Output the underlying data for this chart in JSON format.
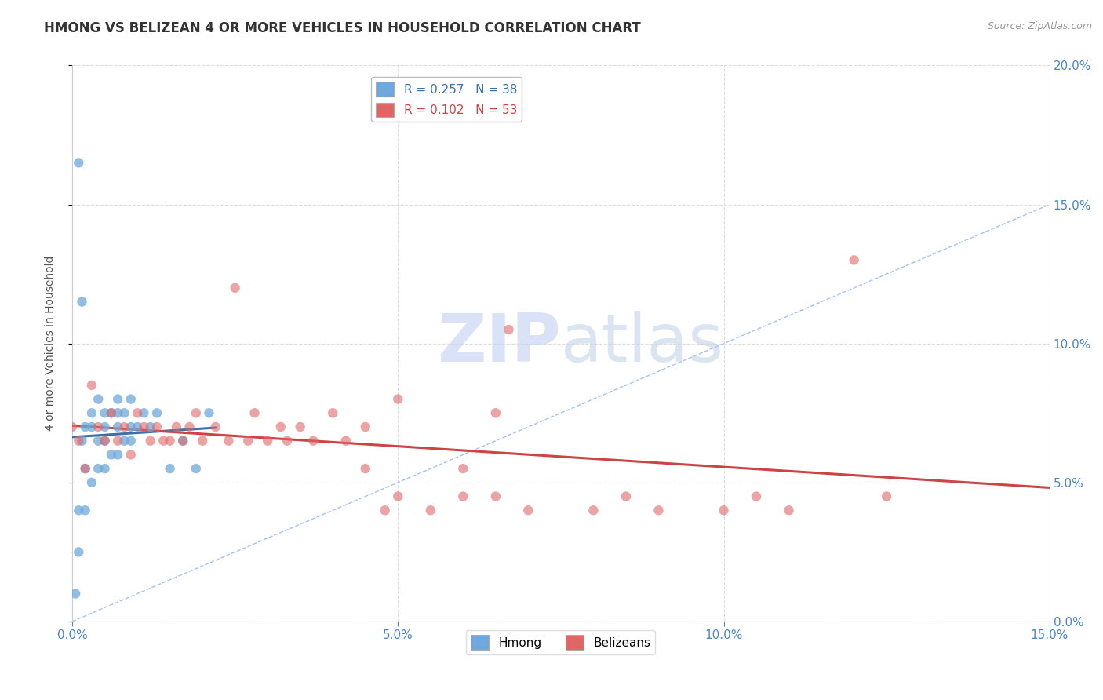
{
  "title": "HMONG VS BELIZEAN 4 OR MORE VEHICLES IN HOUSEHOLD CORRELATION CHART",
  "source_text": "Source: ZipAtlas.com",
  "ylabel": "4 or more Vehicles in Household",
  "xlim": [
    0.0,
    0.15
  ],
  "ylim": [
    0.0,
    0.2
  ],
  "xticks": [
    0.0,
    0.05,
    0.1,
    0.15
  ],
  "yticks": [
    0.0,
    0.05,
    0.1,
    0.15,
    0.2
  ],
  "xtick_labels": [
    "0.0%",
    "5.0%",
    "10.0%",
    "15.0%"
  ],
  "ytick_labels": [
    "0.0%",
    "5.0%",
    "10.0%",
    "15.0%",
    "20.0%"
  ],
  "hmong_R": 0.257,
  "hmong_N": 38,
  "belizean_R": 0.102,
  "belizean_N": 53,
  "hmong_color": "#6fa8dc",
  "belizean_color": "#e06666",
  "hmong_trendline_color": "#3d6fa8",
  "belizean_trendline_color": "#cc4444",
  "diagonal_color": "#a4c2f4",
  "watermark_color": "#d0dff8",
  "background_color": "#ffffff",
  "grid_color": "#dddddd",
  "right_axis_color": "#4a86c8",
  "hmong_x": [
    0.0005,
    0.001,
    0.001,
    0.0015,
    0.002,
    0.002,
    0.002,
    0.003,
    0.003,
    0.003,
    0.004,
    0.004,
    0.004,
    0.005,
    0.005,
    0.005,
    0.005,
    0.006,
    0.006,
    0.007,
    0.007,
    0.007,
    0.007,
    0.008,
    0.008,
    0.009,
    0.009,
    0.009,
    0.01,
    0.011,
    0.012,
    0.013,
    0.015,
    0.017,
    0.019,
    0.021,
    0.001,
    0.0015
  ],
  "hmong_y": [
    0.01,
    0.025,
    0.04,
    0.065,
    0.04,
    0.055,
    0.07,
    0.05,
    0.07,
    0.075,
    0.055,
    0.065,
    0.08,
    0.055,
    0.065,
    0.07,
    0.075,
    0.06,
    0.075,
    0.06,
    0.07,
    0.075,
    0.08,
    0.065,
    0.075,
    0.065,
    0.07,
    0.08,
    0.07,
    0.075,
    0.07,
    0.075,
    0.055,
    0.065,
    0.055,
    0.075,
    0.165,
    0.115
  ],
  "belizean_x": [
    0.0,
    0.001,
    0.002,
    0.003,
    0.004,
    0.005,
    0.006,
    0.007,
    0.008,
    0.009,
    0.01,
    0.011,
    0.012,
    0.013,
    0.014,
    0.015,
    0.016,
    0.017,
    0.018,
    0.019,
    0.02,
    0.022,
    0.024,
    0.025,
    0.027,
    0.028,
    0.03,
    0.032,
    0.033,
    0.035,
    0.037,
    0.04,
    0.042,
    0.045,
    0.048,
    0.05,
    0.055,
    0.06,
    0.065,
    0.067,
    0.07,
    0.08,
    0.085,
    0.09,
    0.1,
    0.105,
    0.11,
    0.12,
    0.125,
    0.045,
    0.05,
    0.06,
    0.065
  ],
  "belizean_y": [
    0.07,
    0.065,
    0.055,
    0.085,
    0.07,
    0.065,
    0.075,
    0.065,
    0.07,
    0.06,
    0.075,
    0.07,
    0.065,
    0.07,
    0.065,
    0.065,
    0.07,
    0.065,
    0.07,
    0.075,
    0.065,
    0.07,
    0.065,
    0.12,
    0.065,
    0.075,
    0.065,
    0.07,
    0.065,
    0.07,
    0.065,
    0.075,
    0.065,
    0.07,
    0.04,
    0.045,
    0.04,
    0.055,
    0.045,
    0.105,
    0.04,
    0.04,
    0.045,
    0.04,
    0.04,
    0.045,
    0.04,
    0.13,
    0.045,
    0.055,
    0.08,
    0.045,
    0.075
  ]
}
